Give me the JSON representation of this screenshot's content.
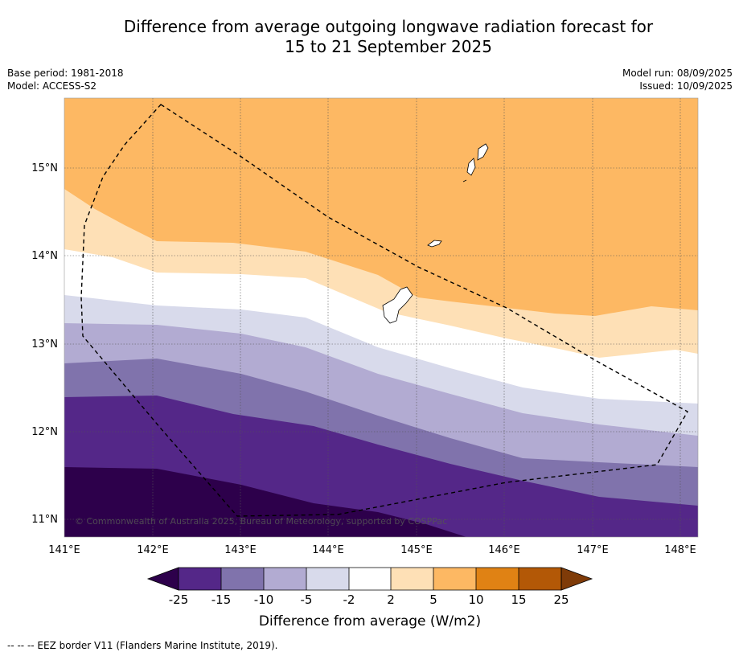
{
  "title": {
    "line1": "Difference from average outgoing longwave radiation forecast for",
    "line2": "15 to 21 September 2025"
  },
  "meta_left": {
    "base_period": "Base period: 1981-2018",
    "model": "Model: ACCESS-S2"
  },
  "meta_right": {
    "model_run": "Model run: 08/09/2025",
    "issued": "Issued: 10/09/2025"
  },
  "map": {
    "lon_range": [
      141.0,
      148.2
    ],
    "lat_range": [
      10.8,
      15.8
    ],
    "x_ticks": [
      "141°E",
      "142°E",
      "143°E",
      "144°E",
      "145°E",
      "146°E",
      "147°E",
      "148°E"
    ],
    "y_ticks": [
      "11°N",
      "12°N",
      "13°N",
      "14°N",
      "15°N"
    ],
    "copyright": "© Commonwealth of Australia 2025, Bureau of Meteorology, supported by COSPPac"
  },
  "colorbar": {
    "label": "Difference from average (W/m2)",
    "tick_labels": [
      "-25",
      "-15",
      "-10",
      "-5",
      "-2",
      "2",
      "5",
      "10",
      "15",
      "25"
    ],
    "colors": [
      "#2d004b",
      "#542788",
      "#8073ac",
      "#b2abd2",
      "#d8daeb",
      "#ffffff",
      "#fee0b6",
      "#fdb863",
      "#e08214",
      "#b35806",
      "#7f3b08"
    ]
  },
  "band_colors": {
    "lt_-25": "#2d004b",
    "-25_-15": "#542788",
    "-15_-10": "#8073ac",
    "-10_-5": "#b2abd2",
    "-5_-2": "#d8daeb",
    "-2_2": "#ffffff",
    "2_5": "#fee0b6",
    "5_10": "#fdb863"
  },
  "footer": "--  --  -- EEZ border V11 (Flanders Marine Institute, 2019)."
}
